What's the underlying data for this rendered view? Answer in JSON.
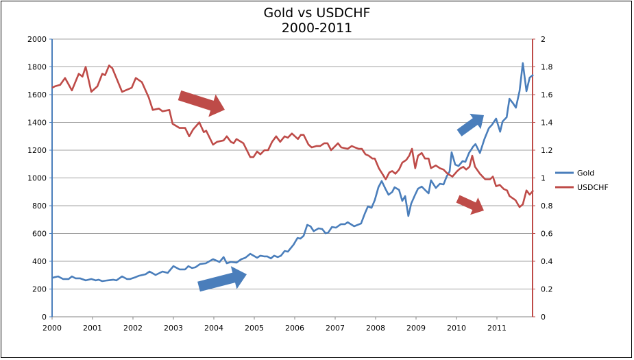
{
  "chart_data": {
    "type": "line",
    "title": "Gold vs USDCHF",
    "subtitle": "2000-2011",
    "xlim": [
      2000,
      2011.92
    ],
    "x_ticks": [
      "2000",
      "2001",
      "2002",
      "2003",
      "2004",
      "2005",
      "2006",
      "2007",
      "2008",
      "2009",
      "2010",
      "2011"
    ],
    "y_left": {
      "ylim": [
        0,
        2000
      ],
      "ticks": [
        "0",
        "200",
        "400",
        "600",
        "800",
        "1000",
        "1200",
        "1400",
        "1600",
        "1800",
        "2000"
      ],
      "color": "#4a7ebb"
    },
    "y_right": {
      "ylim": [
        0,
        2
      ],
      "ticks": [
        "0",
        "0.2",
        "0.4",
        "0.6",
        "0.8",
        "1",
        "1.2",
        "1.4",
        "1.6",
        "1.8",
        "2"
      ],
      "color": "#be4b48"
    },
    "grid": true,
    "legend_position": "right",
    "series": [
      {
        "name": "Gold",
        "axis": "left",
        "color": "#4a7ebb",
        "points": [
          [
            2000.0,
            280
          ],
          [
            2000.07,
            286
          ],
          [
            2000.15,
            291
          ],
          [
            2000.27,
            272
          ],
          [
            2000.41,
            272
          ],
          [
            2000.49,
            291
          ],
          [
            2000.58,
            277
          ],
          [
            2000.69,
            277
          ],
          [
            2000.83,
            262
          ],
          [
            2000.97,
            272
          ],
          [
            2001.08,
            262
          ],
          [
            2001.15,
            267
          ],
          [
            2001.24,
            257
          ],
          [
            2001.37,
            262
          ],
          [
            2001.51,
            267
          ],
          [
            2001.59,
            262
          ],
          [
            2001.73,
            291
          ],
          [
            2001.85,
            272
          ],
          [
            2001.93,
            272
          ],
          [
            2002.07,
            286
          ],
          [
            2002.15,
            296
          ],
          [
            2002.31,
            306
          ],
          [
            2002.41,
            326
          ],
          [
            2002.56,
            301
          ],
          [
            2002.73,
            326
          ],
          [
            2002.86,
            316
          ],
          [
            2003.0,
            365
          ],
          [
            2003.15,
            341
          ],
          [
            2003.29,
            341
          ],
          [
            2003.37,
            365
          ],
          [
            2003.46,
            351
          ],
          [
            2003.54,
            356
          ],
          [
            2003.66,
            380
          ],
          [
            2003.8,
            385
          ],
          [
            2003.98,
            415
          ],
          [
            2004.14,
            395
          ],
          [
            2004.24,
            430
          ],
          [
            2004.32,
            385
          ],
          [
            2004.42,
            395
          ],
          [
            2004.56,
            390
          ],
          [
            2004.68,
            415
          ],
          [
            2004.78,
            425
          ],
          [
            2004.9,
            454
          ],
          [
            2005.07,
            425
          ],
          [
            2005.15,
            440
          ],
          [
            2005.24,
            435
          ],
          [
            2005.32,
            435
          ],
          [
            2005.41,
            420
          ],
          [
            2005.49,
            440
          ],
          [
            2005.58,
            430
          ],
          [
            2005.66,
            440
          ],
          [
            2005.75,
            474
          ],
          [
            2005.83,
            469
          ],
          [
            2005.97,
            519
          ],
          [
            2006.07,
            568
          ],
          [
            2006.14,
            563
          ],
          [
            2006.22,
            583
          ],
          [
            2006.31,
            662
          ],
          [
            2006.39,
            652
          ],
          [
            2006.47,
            617
          ],
          [
            2006.59,
            637
          ],
          [
            2006.68,
            632
          ],
          [
            2006.76,
            602
          ],
          [
            2006.83,
            607
          ],
          [
            2006.92,
            647
          ],
          [
            2007.02,
            642
          ],
          [
            2007.14,
            667
          ],
          [
            2007.24,
            667
          ],
          [
            2007.31,
            681
          ],
          [
            2007.47,
            652
          ],
          [
            2007.64,
            672
          ],
          [
            2007.73,
            741
          ],
          [
            2007.81,
            795
          ],
          [
            2007.9,
            785
          ],
          [
            2007.98,
            840
          ],
          [
            2008.07,
            933
          ],
          [
            2008.15,
            978
          ],
          [
            2008.24,
            923
          ],
          [
            2008.32,
            879
          ],
          [
            2008.41,
            899
          ],
          [
            2008.47,
            933
          ],
          [
            2008.58,
            914
          ],
          [
            2008.66,
            835
          ],
          [
            2008.73,
            869
          ],
          [
            2008.81,
            726
          ],
          [
            2008.88,
            815
          ],
          [
            2008.97,
            874
          ],
          [
            2009.05,
            923
          ],
          [
            2009.14,
            938
          ],
          [
            2009.22,
            914
          ],
          [
            2009.31,
            889
          ],
          [
            2009.37,
            983
          ],
          [
            2009.49,
            928
          ],
          [
            2009.59,
            958
          ],
          [
            2009.68,
            953
          ],
          [
            2009.76,
            1012
          ],
          [
            2009.83,
            1047
          ],
          [
            2009.88,
            1185
          ],
          [
            2009.97,
            1096
          ],
          [
            2010.05,
            1086
          ],
          [
            2010.15,
            1121
          ],
          [
            2010.22,
            1116
          ],
          [
            2010.31,
            1180
          ],
          [
            2010.41,
            1225
          ],
          [
            2010.47,
            1244
          ],
          [
            2010.58,
            1180
          ],
          [
            2010.69,
            1279
          ],
          [
            2010.8,
            1358
          ],
          [
            2010.88,
            1383
          ],
          [
            2010.98,
            1427
          ],
          [
            2011.08,
            1333
          ],
          [
            2011.14,
            1407
          ],
          [
            2011.24,
            1437
          ],
          [
            2011.31,
            1570
          ],
          [
            2011.39,
            1541
          ],
          [
            2011.47,
            1506
          ],
          [
            2011.56,
            1625
          ],
          [
            2011.64,
            1827
          ],
          [
            2011.73,
            1625
          ],
          [
            2011.81,
            1723
          ],
          [
            2011.9,
            1743
          ]
        ]
      },
      {
        "name": "USDCHF",
        "axis": "right",
        "color": "#be4b48",
        "points": [
          [
            2000.0,
            1.65
          ],
          [
            2000.07,
            1.66
          ],
          [
            2000.2,
            1.67
          ],
          [
            2000.32,
            1.72
          ],
          [
            2000.49,
            1.63
          ],
          [
            2000.66,
            1.75
          ],
          [
            2000.75,
            1.73
          ],
          [
            2000.83,
            1.8
          ],
          [
            2000.97,
            1.62
          ],
          [
            2001.12,
            1.66
          ],
          [
            2001.24,
            1.75
          ],
          [
            2001.31,
            1.74
          ],
          [
            2001.41,
            1.81
          ],
          [
            2001.49,
            1.79
          ],
          [
            2001.73,
            1.62
          ],
          [
            2001.97,
            1.65
          ],
          [
            2002.07,
            1.72
          ],
          [
            2002.22,
            1.69
          ],
          [
            2002.39,
            1.58
          ],
          [
            2002.49,
            1.49
          ],
          [
            2002.64,
            1.5
          ],
          [
            2002.73,
            1.48
          ],
          [
            2002.9,
            1.49
          ],
          [
            2002.98,
            1.39
          ],
          [
            2003.15,
            1.36
          ],
          [
            2003.29,
            1.36
          ],
          [
            2003.39,
            1.3
          ],
          [
            2003.49,
            1.35
          ],
          [
            2003.64,
            1.4
          ],
          [
            2003.75,
            1.33
          ],
          [
            2003.81,
            1.34
          ],
          [
            2003.98,
            1.24
          ],
          [
            2004.08,
            1.26
          ],
          [
            2004.24,
            1.27
          ],
          [
            2004.32,
            1.3
          ],
          [
            2004.42,
            1.26
          ],
          [
            2004.49,
            1.25
          ],
          [
            2004.56,
            1.28
          ],
          [
            2004.73,
            1.25
          ],
          [
            2004.9,
            1.15
          ],
          [
            2004.98,
            1.15
          ],
          [
            2005.07,
            1.19
          ],
          [
            2005.15,
            1.17
          ],
          [
            2005.25,
            1.2
          ],
          [
            2005.34,
            1.2
          ],
          [
            2005.44,
            1.26
          ],
          [
            2005.54,
            1.3
          ],
          [
            2005.64,
            1.26
          ],
          [
            2005.75,
            1.3
          ],
          [
            2005.83,
            1.29
          ],
          [
            2005.93,
            1.32
          ],
          [
            2006.08,
            1.28
          ],
          [
            2006.15,
            1.31
          ],
          [
            2006.22,
            1.31
          ],
          [
            2006.34,
            1.24
          ],
          [
            2006.42,
            1.22
          ],
          [
            2006.54,
            1.23
          ],
          [
            2006.63,
            1.23
          ],
          [
            2006.73,
            1.25
          ],
          [
            2006.81,
            1.25
          ],
          [
            2006.9,
            1.2
          ],
          [
            2007.07,
            1.25
          ],
          [
            2007.15,
            1.22
          ],
          [
            2007.31,
            1.21
          ],
          [
            2007.41,
            1.23
          ],
          [
            2007.49,
            1.22
          ],
          [
            2007.58,
            1.21
          ],
          [
            2007.66,
            1.21
          ],
          [
            2007.75,
            1.17
          ],
          [
            2007.83,
            1.16
          ],
          [
            2007.92,
            1.14
          ],
          [
            2007.98,
            1.14
          ],
          [
            2008.08,
            1.07
          ],
          [
            2008.25,
            0.99
          ],
          [
            2008.34,
            1.04
          ],
          [
            2008.41,
            1.05
          ],
          [
            2008.49,
            1.03
          ],
          [
            2008.58,
            1.06
          ],
          [
            2008.66,
            1.11
          ],
          [
            2008.76,
            1.13
          ],
          [
            2008.83,
            1.16
          ],
          [
            2008.9,
            1.21
          ],
          [
            2008.98,
            1.07
          ],
          [
            2009.05,
            1.16
          ],
          [
            2009.14,
            1.18
          ],
          [
            2009.22,
            1.14
          ],
          [
            2009.31,
            1.14
          ],
          [
            2009.37,
            1.07
          ],
          [
            2009.49,
            1.09
          ],
          [
            2009.59,
            1.07
          ],
          [
            2009.68,
            1.06
          ],
          [
            2009.78,
            1.03
          ],
          [
            2009.9,
            1.01
          ],
          [
            2010.02,
            1.05
          ],
          [
            2010.1,
            1.07
          ],
          [
            2010.17,
            1.08
          ],
          [
            2010.24,
            1.06
          ],
          [
            2010.32,
            1.08
          ],
          [
            2010.39,
            1.16
          ],
          [
            2010.46,
            1.08
          ],
          [
            2010.58,
            1.03
          ],
          [
            2010.71,
            0.99
          ],
          [
            2010.83,
            0.99
          ],
          [
            2010.9,
            1.01
          ],
          [
            2010.98,
            0.94
          ],
          [
            2011.07,
            0.95
          ],
          [
            2011.17,
            0.92
          ],
          [
            2011.25,
            0.91
          ],
          [
            2011.31,
            0.87
          ],
          [
            2011.46,
            0.84
          ],
          [
            2011.56,
            0.79
          ],
          [
            2011.64,
            0.81
          ],
          [
            2011.73,
            0.91
          ],
          [
            2011.81,
            0.88
          ],
          [
            2011.9,
            0.91
          ]
        ]
      }
    ],
    "annotations": [
      {
        "type": "arrow",
        "direction": "down-right",
        "color": "#be4b48"
      },
      {
        "type": "arrow",
        "direction": "up-right",
        "color": "#4a7ebb"
      },
      {
        "type": "arrow",
        "direction": "up-right",
        "color": "#4a7ebb"
      },
      {
        "type": "arrow",
        "direction": "down-right",
        "color": "#be4b48"
      }
    ]
  }
}
